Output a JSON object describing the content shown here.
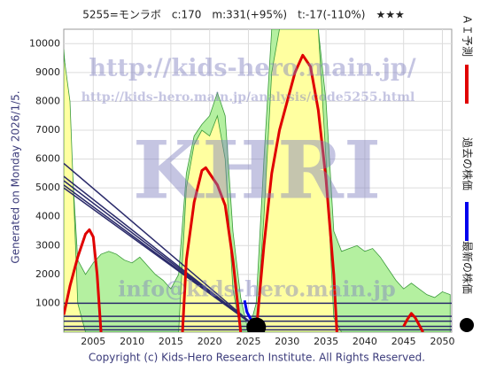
{
  "chart_data": {
    "type": "line",
    "title": "5255=モンラボ　c:170　m:331(+95%)　t:-17(-110%)　★★★",
    "side_label": "Generated on Monday 2026/1/5.",
    "footer": "Copyright (c) Kids-Hero Research Institute. All Rights Reserved.",
    "annotations": [
      "http://kids-hero.main.jp/",
      "http://kids-hero.main.jp/analysis/code5255.html",
      "KHRI",
      "info@kids-hero.main.jp"
    ],
    "xlim": [
      2001.2,
      2051.2
    ],
    "xticks": [
      2005,
      2010,
      2015,
      2020,
      2025,
      2030,
      2035,
      2040,
      2045,
      2050
    ],
    "ylim": [
      0,
      10500
    ],
    "yticks": [
      1000,
      2000,
      3000,
      4000,
      5000,
      6000,
      7000,
      8000,
      9000,
      10000
    ],
    "grid": true,
    "hlines": {
      "color": "#2a2a6a",
      "values": [
        1000,
        550,
        380,
        200,
        80
      ]
    },
    "series": [
      {
        "kind": "area",
        "color": "#b4f0a0",
        "x": [
          2001.2,
          2002,
          2003,
          2004,
          2005,
          2006,
          2007,
          2008,
          2009,
          2010,
          2011,
          2012,
          2013,
          2014,
          2015,
          2016,
          2017,
          2018,
          2019,
          2020,
          2021,
          2022,
          2023,
          2024,
          2025,
          2026,
          2027,
          2028,
          2029,
          2030,
          2031,
          2032,
          2033,
          2034,
          2035,
          2036,
          2037,
          2038,
          2039,
          2040,
          2041,
          2042,
          2043,
          2044,
          2045,
          2046,
          2047,
          2048,
          2049,
          2050,
          2051
        ],
        "values": [
          9800,
          7000,
          2500,
          2000,
          2400,
          2700,
          2800,
          2700,
          2500,
          2400,
          2600,
          2300,
          2000,
          1800,
          1500,
          2000,
          5500,
          6800,
          7200,
          7500,
          8300,
          7500,
          3500,
          1200,
          0,
          1000,
          6000,
          10500,
          10500,
          10500,
          10500,
          10500,
          10500,
          10500,
          8000,
          3500,
          2800,
          2900,
          3000,
          2800,
          2900,
          2600,
          2200,
          1800,
          1500,
          1700,
          1500,
          1300,
          1200,
          1400,
          1300
        ]
      },
      {
        "kind": "area",
        "color": "#ffffa0",
        "x": [
          2001.2,
          2002,
          2003,
          2004,
          2016,
          2017,
          2018,
          2019,
          2020,
          2021,
          2022,
          2023,
          2024,
          2026,
          2027,
          2028,
          2029,
          2034,
          2035,
          2036,
          2037
        ],
        "values": [
          9600,
          8000,
          1000,
          0,
          0,
          5000,
          6500,
          7000,
          6800,
          7500,
          6000,
          1500,
          0,
          0,
          4000,
          9000,
          10500,
          10500,
          6000,
          500,
          0
        ]
      },
      {
        "kind": "line",
        "color": "#2a2a6a",
        "x": [
          2001.2,
          2026
        ],
        "values": [
          5850,
          170
        ]
      },
      {
        "kind": "line",
        "color": "#2a2a6a",
        "x": [
          2001.2,
          2026
        ],
        "values": [
          5400,
          170
        ]
      },
      {
        "kind": "line",
        "color": "#2a2a6a",
        "x": [
          2001.2,
          2026
        ],
        "values": [
          5250,
          170
        ]
      },
      {
        "kind": "line",
        "color": "#2a2a6a",
        "x": [
          2001.2,
          2026
        ],
        "values": [
          5100,
          170
        ]
      },
      {
        "kind": "line",
        "color": "#2a2a6a",
        "x": [
          2001.2,
          2026
        ],
        "values": [
          5000,
          170
        ]
      },
      {
        "kind": "line",
        "name": "ＡＩ予測",
        "color": "#e00000",
        "width": 3,
        "x": [
          2001.2,
          2002,
          2003,
          2004,
          2004.5,
          2005,
          2005.5,
          2006,
          null,
          2016.5,
          2017,
          2018,
          2019,
          2019.5,
          2020,
          2021,
          2022,
          2023,
          2024,
          null,
          2026,
          2027,
          2028,
          2029,
          2030,
          2031,
          2032,
          2033,
          2034,
          2035,
          2036,
          2036.4,
          null,
          2045,
          2045.5,
          2046,
          2046.5,
          2047,
          2047.5
        ],
        "values": [
          600,
          1600,
          2600,
          3400,
          3550,
          3300,
          2000,
          0,
          null,
          0,
          2500,
          4500,
          5600,
          5700,
          5500,
          5100,
          4400,
          2500,
          0,
          null,
          0,
          3000,
          5500,
          7000,
          8000,
          9000,
          9600,
          9200,
          7700,
          5300,
          2000,
          0,
          null,
          200,
          450,
          650,
          500,
          250,
          0
        ]
      },
      {
        "kind": "line",
        "name": "過去の株価",
        "color": "#0000ee",
        "width": 3,
        "x": [
          2024.5,
          2024.8,
          2025.2,
          2025.6,
          2026
        ],
        "values": [
          1100,
          700,
          500,
          300,
          170
        ]
      },
      {
        "kind": "dot",
        "name": "最新の株価",
        "color": "#000000",
        "x": [
          2026
        ],
        "values": [
          170
        ]
      }
    ]
  }
}
